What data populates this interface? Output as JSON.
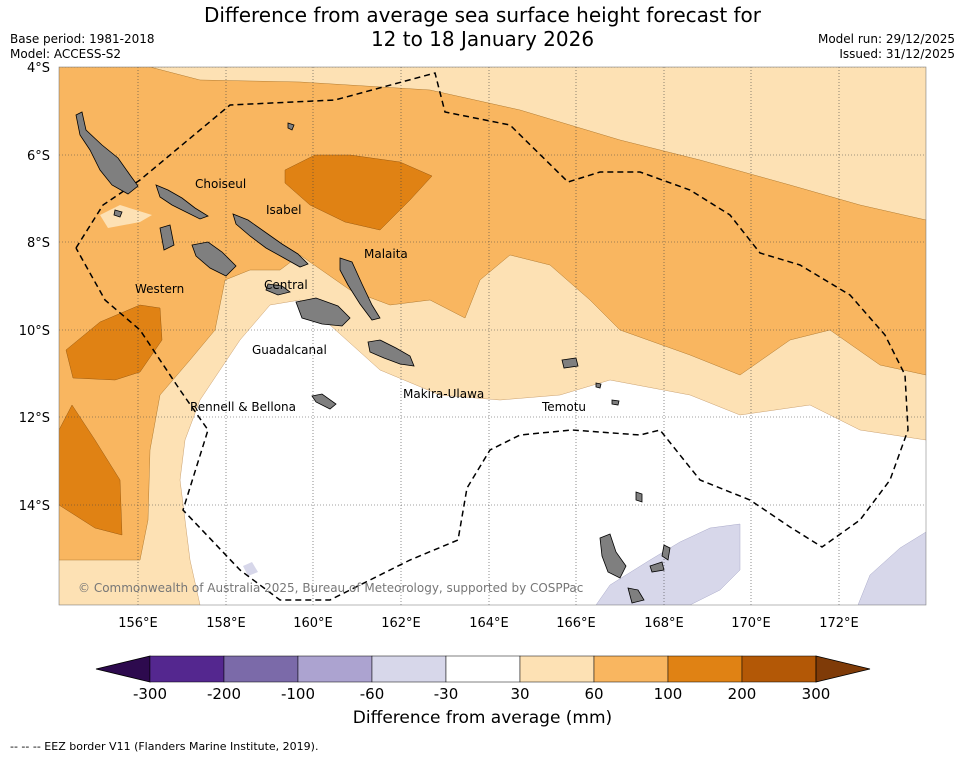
{
  "title": {
    "line1": "Difference from average sea surface height forecast for",
    "line2": "12 to 18 January 2026"
  },
  "meta": {
    "base_period": "Base period: 1981-2018",
    "model": "Model: ACCESS-S2",
    "model_run": "Model run: 29/12/2025",
    "issued": "Issued: 31/12/2025"
  },
  "map": {
    "lat_labels": [
      "4°S",
      "6°S",
      "8°S",
      "10°S",
      "12°S",
      "14°S"
    ],
    "lon_labels": [
      "156°E",
      "158°E",
      "160°E",
      "162°E",
      "164°E",
      "166°E",
      "168°E",
      "170°E",
      "172°E"
    ],
    "places": [
      "Choiseul",
      "Isabel",
      "Malaita",
      "Western",
      "Central",
      "Guadalcanal",
      "Makira-Ulawa",
      "Rennell & Bellona",
      "Temotu"
    ],
    "copyright": "© Commonwealth of Australia 2025, Bureau of Meteorology, supported by COSPPac"
  },
  "colorbar": {
    "ticks": [
      "-300",
      "-200",
      "-100",
      "-60",
      "-30",
      "30",
      "60",
      "100",
      "200",
      "300"
    ],
    "colors": [
      "#2d0a4e",
      "#54278f",
      "#7b6aa9",
      "#aca3d0",
      "#d7d7ea",
      "#ffffff",
      "#fde1b4",
      "#f9b660",
      "#e08214",
      "#b35806",
      "#7f3b08"
    ],
    "label": "Difference from average (mm)"
  },
  "footnote": "--  --  -- EEZ border V11 (Flanders Marine Institute, 2019)."
}
